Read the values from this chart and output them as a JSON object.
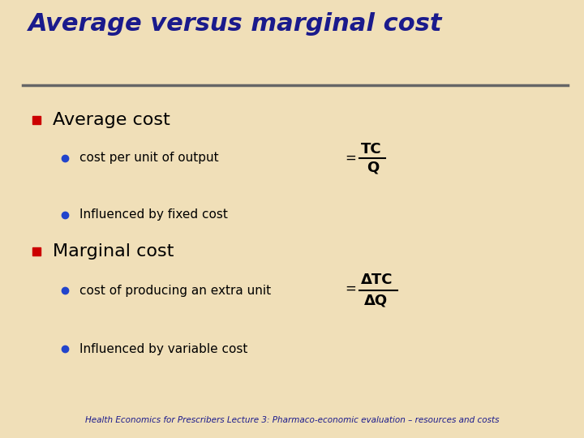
{
  "bg_color": "#F0DFB8",
  "title": "Average versus marginal cost",
  "title_color": "#1a1a8c",
  "title_fontsize": 22,
  "separator_color": "#666666",
  "bullet1_text": "Average cost",
  "bullet1_color": "#cc0000",
  "sub_bullet_color": "#2244cc",
  "sub1a_text": "cost per unit of output",
  "sub1a_formula_num": "TC",
  "sub1a_formula_den": "Q",
  "sub1b_text": "Influenced by fixed cost",
  "bullet2_text": "Marginal cost",
  "bullet2_color": "#cc0000",
  "sub2a_text": "cost of producing an extra unit",
  "sub2a_formula_num": "ΔTC",
  "sub2a_formula_den": "ΔQ",
  "sub2b_text": "Influenced by variable cost",
  "footer_text": "Health Economics for Prescribers Lecture 3: Pharmaco-economic evaluation – resources and costs",
  "footer_color": "#1a1a8c",
  "footer_fontsize": 7.5,
  "title_bullet1_fontsize": 16,
  "title_bullet2_fontsize": 16,
  "sub_fontsize": 11,
  "formula_fontsize": 12
}
